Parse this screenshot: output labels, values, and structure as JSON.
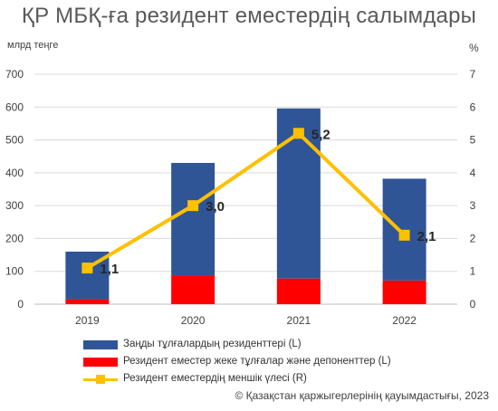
{
  "title": "ҚР МБҚ-ға резидент еместердің салымдары",
  "left_unit": "млрд теңге",
  "right_unit": "%",
  "copyright": "© Қазақстан қаржыгерлерінің қауымдастығы, 2023",
  "colors": {
    "legal": "#2f5597",
    "individual": "#ff0000",
    "share": "#ffc000",
    "grid": "#d9d9d9",
    "axis_text": "#404040"
  },
  "chart_data": {
    "type": "bar",
    "categories": [
      "2019",
      "2020",
      "2021",
      "2022"
    ],
    "ylim_left": [
      0,
      700
    ],
    "yticks_left": [
      "0",
      "100",
      "200",
      "300",
      "400",
      "500",
      "600",
      "700"
    ],
    "ylim_right": [
      0,
      7
    ],
    "yticks_right": [
      "0",
      "1",
      "2",
      "3",
      "4",
      "5",
      "6",
      "7"
    ],
    "stacked": true,
    "grid": true,
    "legend_position": "bottom",
    "series": [
      {
        "name": "Заңды тұлғалардың резиденттері (L)",
        "axis": "left",
        "type": "bar",
        "values": [
          145,
          342,
          518,
          310
        ]
      },
      {
        "name": "Резидент еместер жеке тұлғалар және депоненттер (L)",
        "axis": "left",
        "type": "bar",
        "values": [
          15,
          88,
          78,
          72
        ]
      },
      {
        "name": "Резидент еместердің меншік үлесі (R)",
        "axis": "right",
        "type": "line",
        "values": [
          1.1,
          3.0,
          5.2,
          2.1
        ],
        "labels": [
          "1,1",
          "3,0",
          "5,2",
          "2,1"
        ]
      }
    ]
  }
}
